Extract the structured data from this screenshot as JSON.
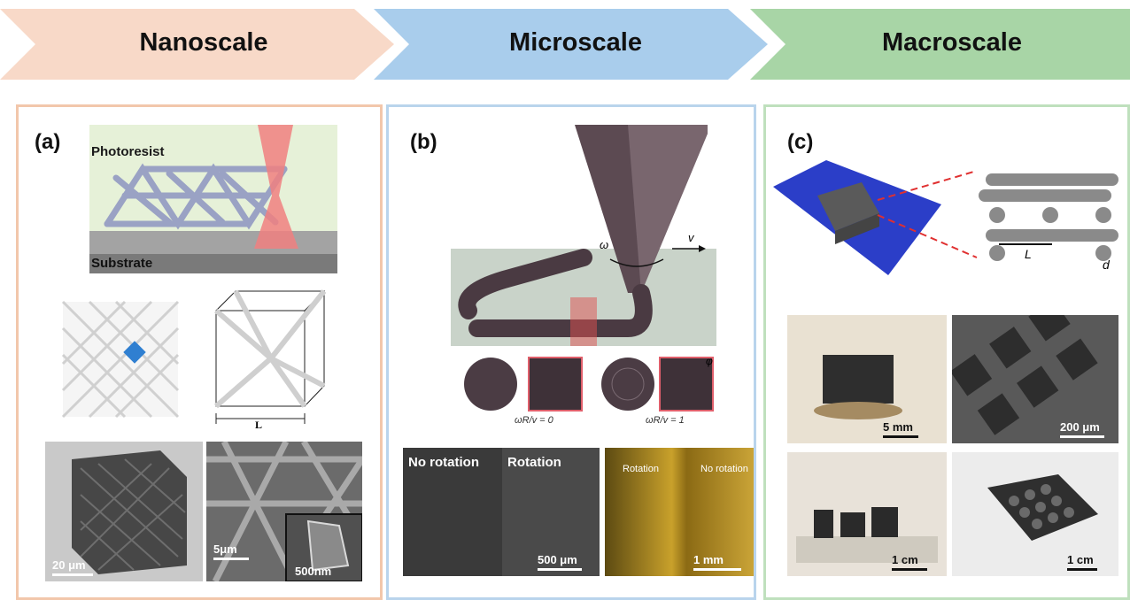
{
  "banner": {
    "stages": [
      {
        "label": "Nanoscale",
        "color": "#f8d9c8"
      },
      {
        "label": "Microscale",
        "color": "#a9cdec"
      },
      {
        "label": "Macroscale",
        "color": "#a8d5a6"
      }
    ]
  },
  "panels": {
    "a": {
      "label": "(a)",
      "border_color": "#f2c7ab",
      "photoresist": "Photoresist",
      "substrate": "Substrate",
      "unit_cell_length": "L",
      "scale_20um": "20 μm",
      "scale_5um": "5μm",
      "scale_500nm": "500nm"
    },
    "b": {
      "label": "(b)",
      "border_color": "#b9d4ec",
      "omega": "ω",
      "velocity": "v",
      "phi": "φ",
      "caption_0": "ωR/v = 0",
      "caption_1": "ωR/v = 1",
      "no_rotation": "No rotation",
      "rotation": "Rotation",
      "scale_500um": "500 μm",
      "rotation_small": "Rotation",
      "no_rotation_small": "No rotation",
      "scale_1mm": "1 mm"
    },
    "c": {
      "label": "(c)",
      "border_color": "#bfe0bd",
      "length": "L",
      "diameter": "d",
      "scale_5mm": "5 mm",
      "scale_200um": "200 μm",
      "scale_1cm_a": "1 cm",
      "scale_1cm_b": "1 cm"
    }
  }
}
